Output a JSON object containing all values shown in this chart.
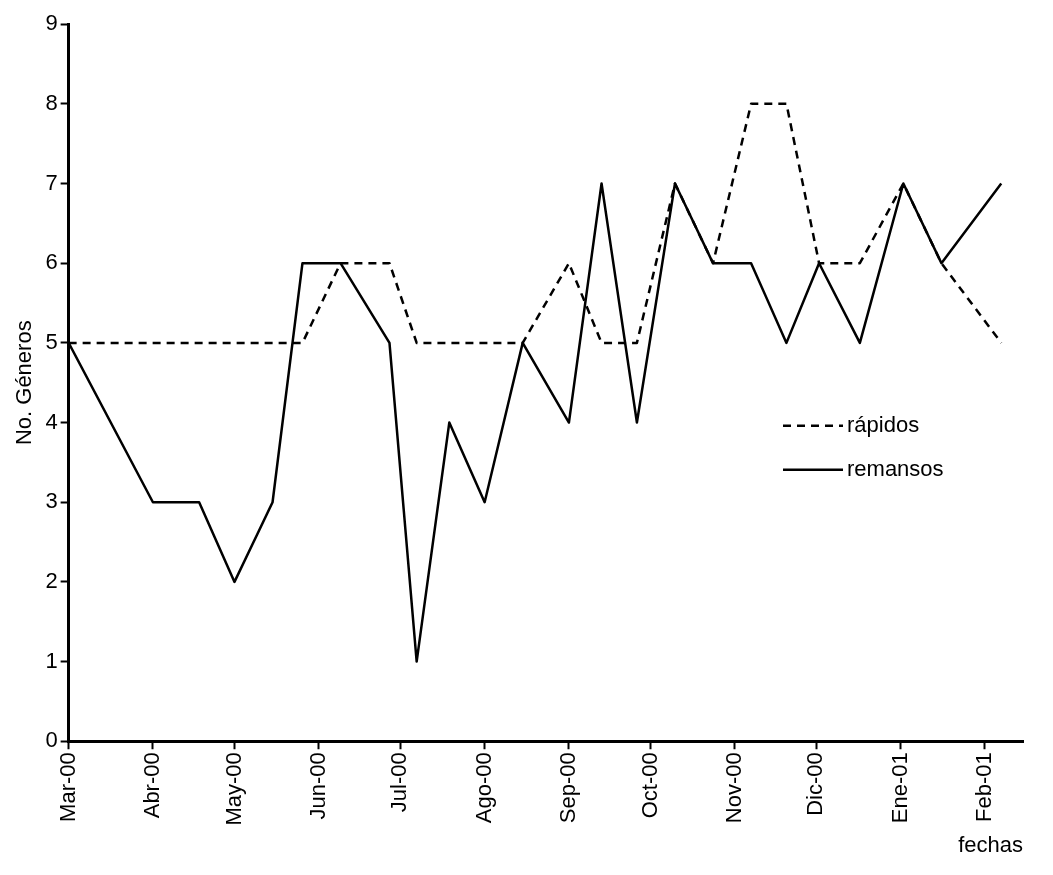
{
  "chart_data": {
    "type": "line",
    "xlabel": "fechas",
    "ylabel": "No. Géneros",
    "x": [
      "2000-03-01",
      "2000-04-01",
      "2000-04-18",
      "2000-05-01",
      "2000-05-15",
      "2000-05-26",
      "2000-06-09",
      "2000-06-27",
      "2000-07-07",
      "2000-07-19",
      "2000-08-01",
      "2000-08-15",
      "2000-09-01",
      "2000-09-13",
      "2000-09-26",
      "2000-10-10",
      "2000-10-24",
      "2000-11-07",
      "2000-11-20",
      "2000-12-02",
      "2000-12-17",
      "2001-01-02",
      "2001-01-16",
      "2001-02-07"
    ],
    "series": [
      {
        "name": "rápidos",
        "color": "#000000",
        "line_style": "dashed",
        "values": [
          5,
          5,
          5,
          5,
          5,
          5,
          6,
          6,
          5,
          5,
          5,
          5,
          6,
          5,
          5,
          7,
          6,
          8,
          8,
          6,
          6,
          7,
          6,
          5
        ]
      },
      {
        "name": "remansos",
        "color": "#000000",
        "line_style": "solid",
        "values": [
          5,
          3,
          3,
          2,
          3,
          6,
          6,
          5,
          1,
          4,
          3,
          5,
          4,
          7,
          4,
          7,
          6,
          6,
          5,
          6,
          5,
          7,
          6,
          7
        ]
      }
    ],
    "xlim": [
      "2000-03-01",
      "2001-02-15"
    ],
    "xticks": [
      {
        "value": "2000-03-01",
        "label": "Mar-00"
      },
      {
        "value": "2000-04-01",
        "label": "Abr-00"
      },
      {
        "value": "2000-05-01",
        "label": "May-00"
      },
      {
        "value": "2000-06-01",
        "label": "Jun-00"
      },
      {
        "value": "2000-07-01",
        "label": "Jul-00"
      },
      {
        "value": "2000-08-01",
        "label": "Ago-00"
      },
      {
        "value": "2000-09-01",
        "label": "Sep-00"
      },
      {
        "value": "2000-10-01",
        "label": "Oct-00"
      },
      {
        "value": "2000-11-01",
        "label": "Nov-00"
      },
      {
        "value": "2000-12-01",
        "label": "Dic-00"
      },
      {
        "value": "2001-01-01",
        "label": "Ene-01"
      },
      {
        "value": "2001-02-01",
        "label": "Feb-01"
      }
    ],
    "ylim": [
      0,
      9
    ],
    "yticks": [
      0,
      1,
      2,
      3,
      4,
      5,
      6,
      7,
      8,
      9
    ],
    "grid": false,
    "legend": "right",
    "marker": "none"
  }
}
